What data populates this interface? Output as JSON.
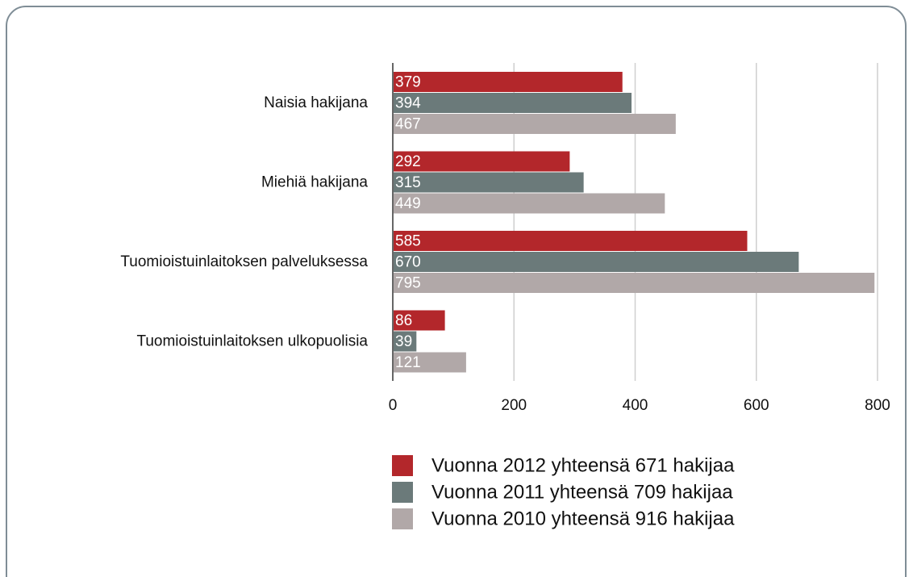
{
  "chart_data": {
    "type": "bar",
    "orientation": "horizontal",
    "categories": [
      "Naisia hakijana",
      "Miehiä hakijana",
      "Tuomioistuinlaitoksen palveluksessa",
      "Tuomioistuinlaitoksen ulkopuolisia"
    ],
    "series": [
      {
        "name": "Vuonna 2012 yhteensä 671 hakijaa",
        "color": "#b3272b",
        "values": [
          379,
          292,
          585,
          86
        ]
      },
      {
        "name": "Vuonna 2011 yhteensä 709 hakijaa",
        "color": "#6b7a7a",
        "values": [
          394,
          315,
          670,
          39
        ]
      },
      {
        "name": "Vuonna 2010 yhteensä 916 hakijaa",
        "color": "#b1a8a8",
        "values": [
          467,
          449,
          795,
          121
        ]
      }
    ],
    "xlim": [
      0,
      800
    ],
    "xticks": [
      0,
      200,
      400,
      600,
      800
    ],
    "grid": true,
    "legend": "bottom"
  }
}
